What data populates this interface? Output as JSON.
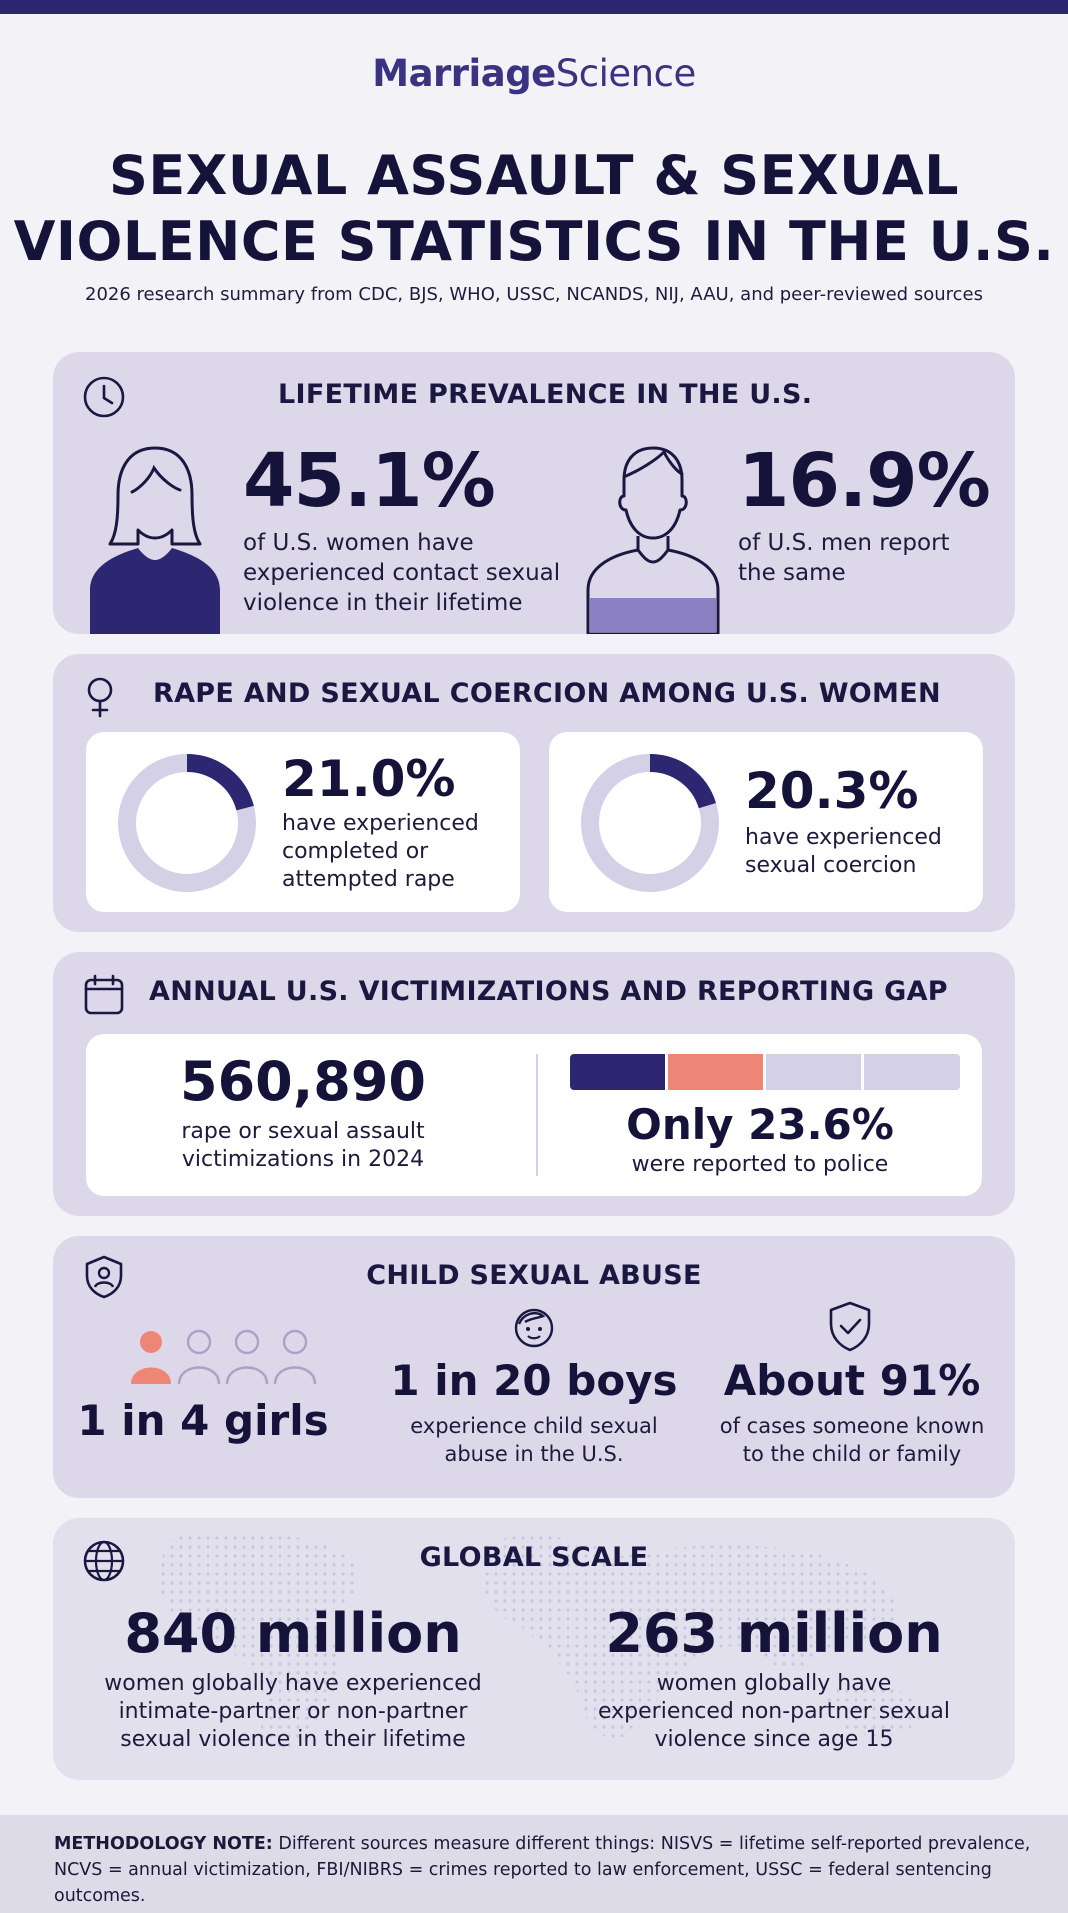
{
  "brand": {
    "part1": "Marriage",
    "part2": "Science"
  },
  "title": {
    "line1": "SEXUAL ASSAULT & SEXUAL",
    "line2": "VIOLENCE STATISTICS IN THE U.S."
  },
  "subtitle": "2026 research summary from CDC, BJS, WHO, USSC, NCANDS, NIJ, AAU, and peer-reviewed sources",
  "lifetime": {
    "heading": "LIFETIME PREVALENCE IN THE U.S.",
    "icon": "clock-icon",
    "women": {
      "value": "45.1%",
      "line1": "of U.S. women have",
      "line2": "experienced contact sexual",
      "line3": "violence in their lifetime",
      "fraction": 0.451
    },
    "men": {
      "value": "16.9%",
      "line1": "of U.S. men report",
      "line2": "the same",
      "fraction": 0.169
    }
  },
  "rape": {
    "heading": "RAPE AND SEXUAL COERCION AMONG U.S. WOMEN",
    "icon": "female-symbol-icon",
    "rape_stat": {
      "value": "21.0%",
      "line1": "have experienced",
      "line2": "completed or",
      "line3": "attempted rape",
      "fraction": 0.21
    },
    "coercion_stat": {
      "value": "20.3%",
      "line1": "have experienced",
      "line2": "sexual coercion",
      "fraction": 0.203
    }
  },
  "annual": {
    "heading": "ANNUAL U.S. VICTIMIZATIONS AND REPORTING GAP",
    "icon": "calendar-icon",
    "victimizations": {
      "value": "560,890",
      "line1": "rape or sexual assault",
      "line2": "victimizations in 2024"
    },
    "reported": {
      "value": "Only 23.6%",
      "line1": "were reported to police",
      "fraction": 0.236
    }
  },
  "child": {
    "heading": "CHILD SEXUAL ABUSE",
    "icon": "shield-person-icon",
    "girls": {
      "value": "1 in 4 girls",
      "fraction": 0.25
    },
    "boys": {
      "value": "1 in 20 boys",
      "line1": "experience child sexual",
      "line2": "abuse in the U.S."
    },
    "known": {
      "value": "About 91%",
      "line1": "of cases someone known",
      "line2": "to the child or family"
    }
  },
  "global": {
    "heading": "GLOBAL SCALE",
    "icon": "globe-icon",
    "stat1": {
      "value": "840 million",
      "line1": "women globally have experienced",
      "line2": "intimate-partner or non-partner",
      "line3": "sexual violence in their lifetime"
    },
    "stat2": {
      "value": "263 million",
      "line1": "women globally have",
      "line2": "experienced non-partner sexual",
      "line3": "violence since age 15"
    }
  },
  "methodology": {
    "label": "METHODOLOGY NOTE:",
    "text": " Different sources measure different things: NISVS = lifetime self-reported prevalence, NCVS = annual victimization, FBI/NIBRS = crimes reported to law enforcement, USSC = federal sentencing outcomes."
  },
  "colors": {
    "navy": "#2d2670",
    "lavender": "#dcd8ea",
    "coral": "#ee8677",
    "ring": "#d4d0e6",
    "purple_fill": "#8b80c2"
  }
}
